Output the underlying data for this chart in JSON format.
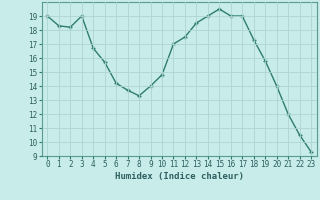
{
  "x": [
    0,
    1,
    2,
    3,
    4,
    5,
    6,
    7,
    8,
    9,
    10,
    11,
    12,
    13,
    14,
    15,
    16,
    17,
    18,
    19,
    20,
    21,
    22,
    23
  ],
  "y": [
    19,
    18.3,
    18.2,
    19,
    16.7,
    15.7,
    14.2,
    13.7,
    13.3,
    14.0,
    14.8,
    17.0,
    17.5,
    18.5,
    19.0,
    19.5,
    19.0,
    19.0,
    17.3,
    15.8,
    14.0,
    12.0,
    10.5,
    9.3
  ],
  "line_color": "#2e7d6e",
  "marker": "+",
  "bg_color": "#c8ecea",
  "grid_color": "#aed4d0",
  "xlabel": "Humidex (Indice chaleur)",
  "xlim": [
    -0.5,
    23.5
  ],
  "ylim": [
    9,
    20
  ],
  "yticks": [
    9,
    10,
    11,
    12,
    13,
    14,
    15,
    16,
    17,
    18,
    19
  ],
  "xticks": [
    0,
    1,
    2,
    3,
    4,
    5,
    6,
    7,
    8,
    9,
    10,
    11,
    12,
    13,
    14,
    15,
    16,
    17,
    18,
    19,
    20,
    21,
    22,
    23
  ],
  "xlabel_fontsize": 6.5,
  "tick_fontsize": 5.5,
  "linewidth": 1.0,
  "markersize": 3,
  "markeredgewidth": 1.0
}
